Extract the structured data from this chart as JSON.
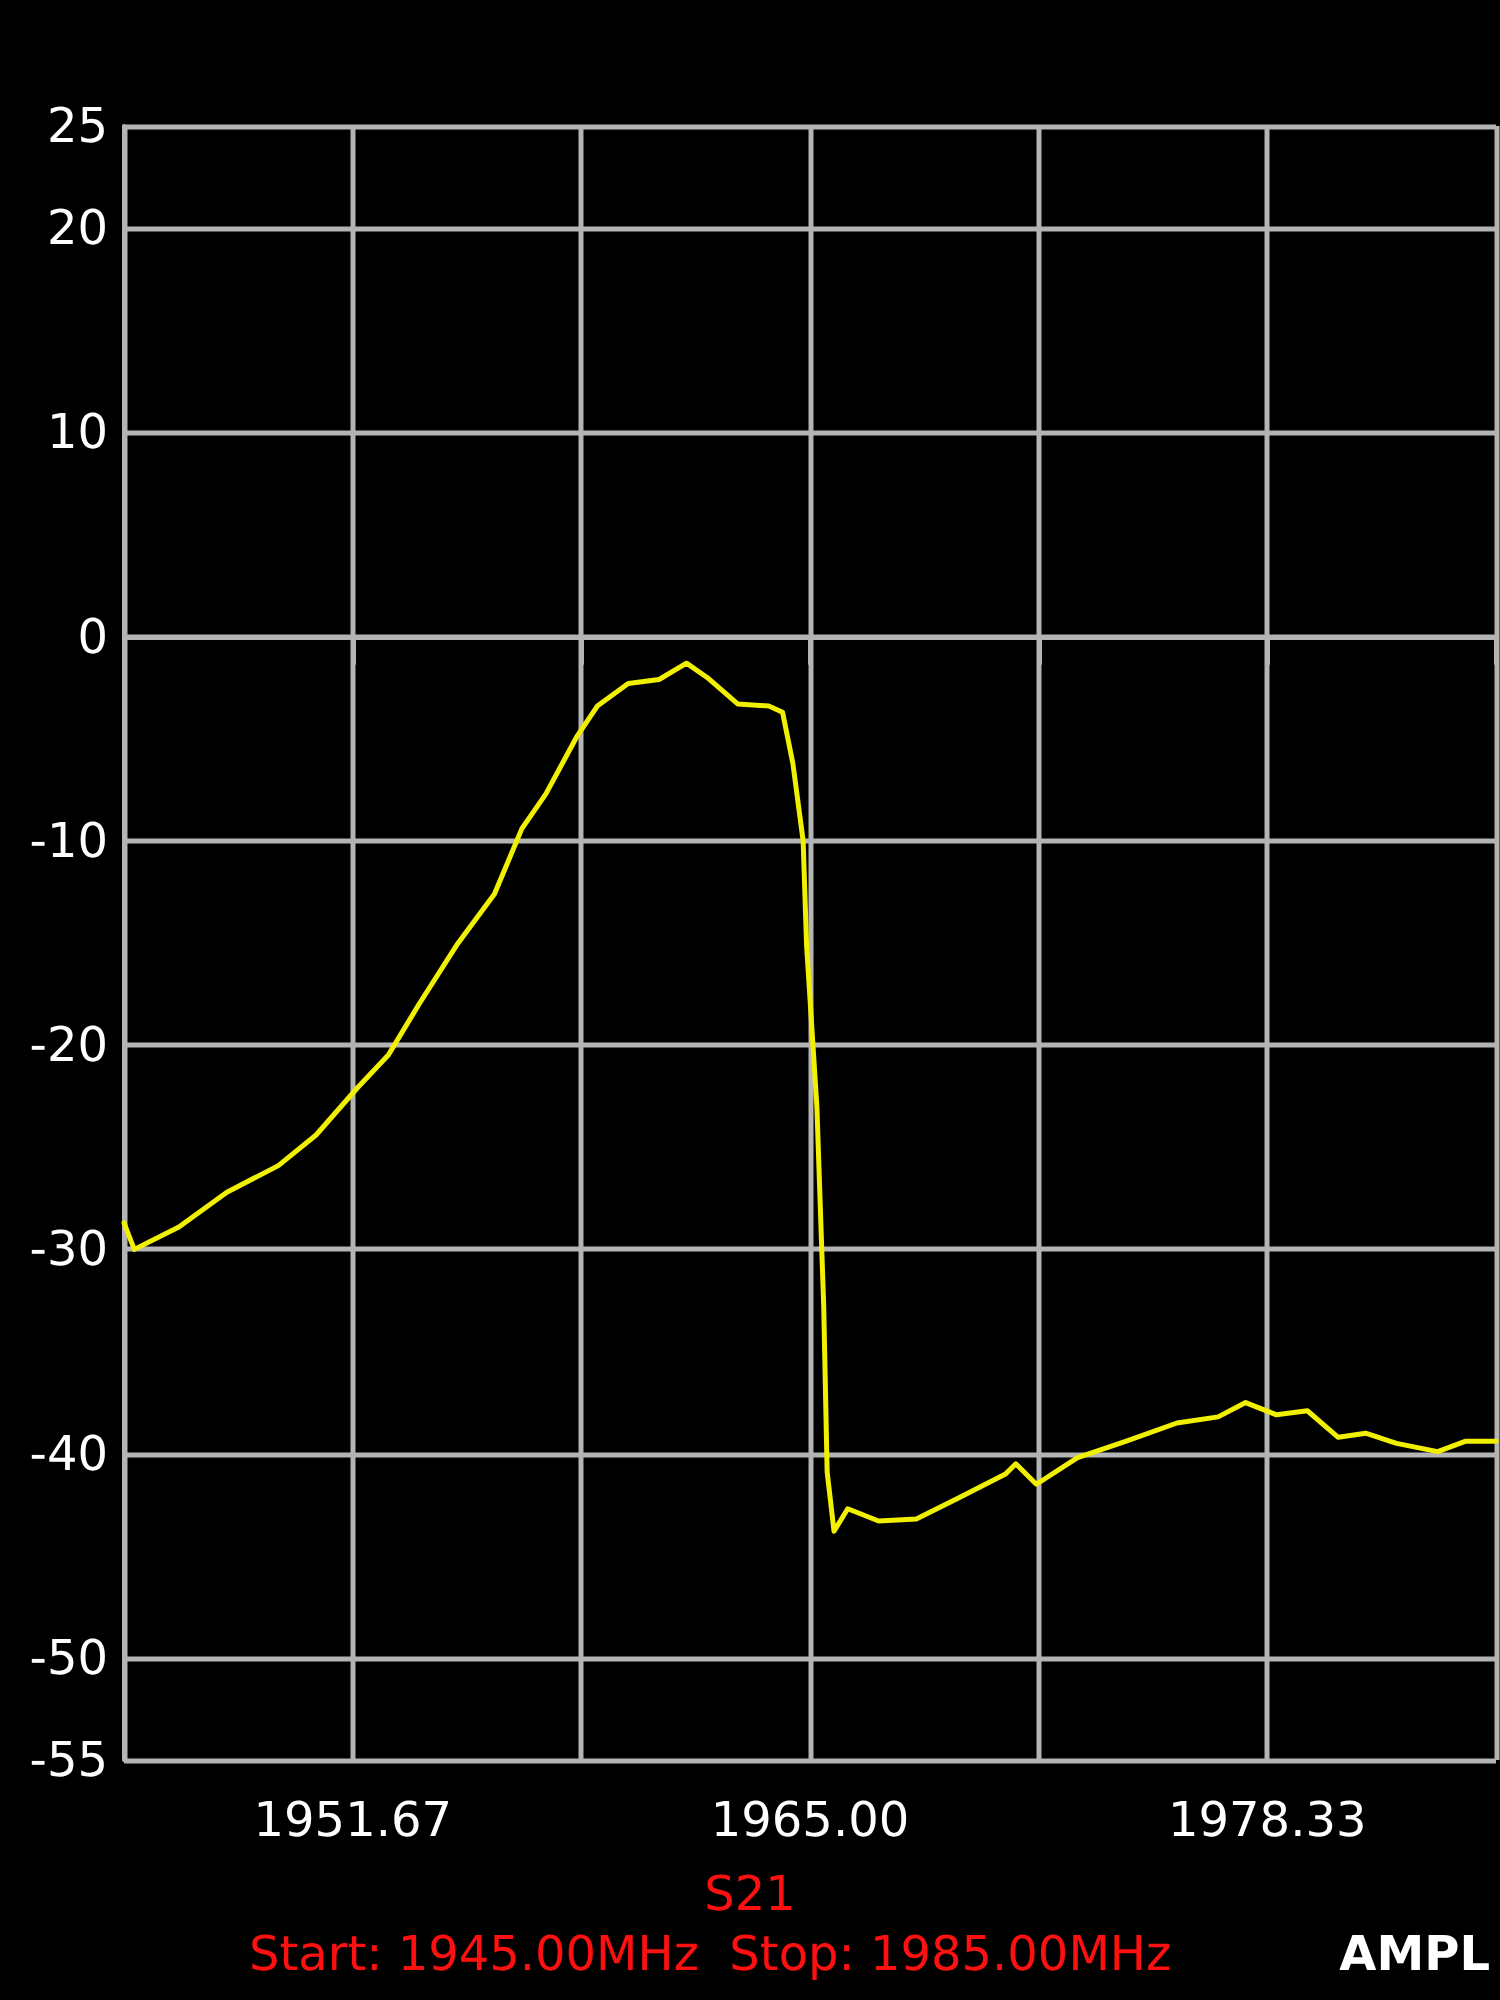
{
  "chart_data": {
    "type": "line",
    "xlim": [
      1945,
      1985
    ],
    "ylim": [
      -55,
      25
    ],
    "xticks": [
      {
        "value": 1945,
        "label": null
      },
      1951.67,
      {
        "value": 1958.33,
        "label": null
      },
      {
        "value": 1965,
        "label": "1965.00"
      },
      {
        "value": 1971.67,
        "label": null
      },
      1978.33,
      {
        "value": 1985,
        "label": null
      }
    ],
    "yticks": [
      -55,
      -50,
      -40,
      -30,
      -20,
      -10,
      0,
      10,
      20,
      25
    ],
    "grid": true,
    "marker": "none",
    "line_style": "solid",
    "annotations": [
      "S21",
      "Start: 1945.00MHz  Stop: 1985.00MHz",
      "AMPL"
    ],
    "series": [
      {
        "color": "#f0f000",
        "x": [
          1945,
          1945.3,
          1946.6,
          1948.0,
          1949.5,
          1950.6,
          1951.8,
          1952.7,
          1953.6,
          1954.7,
          1955.8,
          1956.6,
          1957.3,
          1958.2,
          1958.8,
          1959.7,
          1960.6,
          1961.4,
          1962.0,
          1962.9,
          1963.8,
          1964.2,
          1964.5,
          1964.8,
          1964.9,
          1965.2,
          1965.4,
          1965.5,
          1965.7,
          1966.1,
          1967.0,
          1968.1,
          1969.3,
          1970.7,
          1971.0,
          1971.6,
          1972.8,
          1974.2,
          1975.7,
          1976.9,
          1977.7,
          1978.6,
          1979.5,
          1980.4,
          1981.2,
          1982.1,
          1983.3,
          1984.1,
          1985.0
        ],
        "values": [
          -28.7,
          -30.0,
          -28.9,
          -27.2,
          -25.9,
          -24.4,
          -22.1,
          -20.5,
          -18.0,
          -15.1,
          -12.6,
          -9.4,
          -7.7,
          -4.9,
          -3.4,
          -2.3,
          -2.1,
          -1.3,
          -2.0,
          -3.3,
          -3.4,
          -3.7,
          -6.2,
          -10.0,
          -15.1,
          -23.0,
          -32.8,
          -40.9,
          -43.8,
          -42.7,
          -43.3,
          -43.2,
          -42.2,
          -41.0,
          -40.5,
          -41.5,
          -40.2,
          -39.4,
          -38.5,
          -38.2,
          -37.5,
          -38.1,
          -37.9,
          -39.2,
          -39.0,
          -39.5,
          -39.9,
          -39.4,
          -39.4
        ]
      }
    ]
  }
}
